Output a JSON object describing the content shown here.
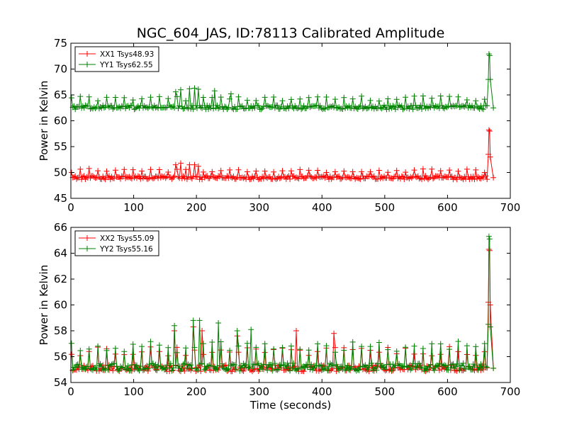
{
  "figure": {
    "title": "NGC_604_JAS, ID:78113 Calibrated Amplitude"
  },
  "chart_data": [
    {
      "type": "line",
      "title": "NGC_604_JAS, ID:78113 Calibrated Amplitude",
      "xlabel": "",
      "ylabel": "Power in Kelvin",
      "xlim": [
        0,
        700
      ],
      "ylim": [
        45,
        75
      ],
      "xticks": [
        "0",
        "100",
        "200",
        "300",
        "400",
        "500",
        "600",
        "700"
      ],
      "yticks": [
        "45",
        "50",
        "55",
        "60",
        "65",
        "70",
        "75"
      ],
      "grid": false,
      "legend": "top-left",
      "marker": "plus",
      "x_step": 2,
      "x_start": 1,
      "series": [
        {
          "name": "XX1 Tsys48.93",
          "color": "#ff0000",
          "base": 49.0,
          "noise": 0.35,
          "periodic_peak": 50.8,
          "tall_peaks": [
            [
              168,
              51.5
            ],
            [
              175,
              51.8
            ],
            [
              190,
              51.5
            ],
            [
              197,
              51.5
            ],
            [
              203,
              51.2
            ]
          ],
          "spike": [
            [
              665,
              53.5
            ],
            [
              666,
              58.2
            ],
            [
              667,
              58.0
            ],
            [
              668,
              53.0
            ]
          ],
          "end": [
            [
              673,
              49.0
            ]
          ]
        },
        {
          "name": "YY1 Tsys62.55",
          "color": "#008000",
          "base": 62.6,
          "noise": 0.4,
          "periodic_peak": 64.8,
          "tall_peaks": [
            [
              168,
              65.6
            ],
            [
              175,
              66.0
            ],
            [
              190,
              66.2
            ],
            [
              197,
              66.3
            ],
            [
              203,
              66.1
            ],
            [
              230,
              65.8
            ],
            [
              255,
              65.2
            ]
          ],
          "spike": [
            [
              665,
              68.0
            ],
            [
              666,
              72.9
            ],
            [
              667,
              72.6
            ],
            [
              668,
              68.0
            ]
          ],
          "end": [
            [
              673,
              62.5
            ]
          ]
        }
      ]
    },
    {
      "type": "line",
      "title": "",
      "xlabel": "Time (seconds)",
      "ylabel": "Power in Kelvin",
      "xlim": [
        0,
        700
      ],
      "ylim": [
        54,
        66
      ],
      "xticks": [
        "0",
        "100",
        "200",
        "300",
        "400",
        "500",
        "600",
        "700"
      ],
      "yticks": [
        "54",
        "56",
        "58",
        "60",
        "62",
        "64",
        "66"
      ],
      "grid": false,
      "legend": "top-left",
      "marker": "plus",
      "x_step": 2,
      "x_start": 1,
      "series": [
        {
          "name": "XX2 Tsys55.09",
          "color": "#ff0000",
          "base": 55.1,
          "noise": 0.25,
          "periodic_peak": 56.8,
          "tall_peaks": [
            [
              165,
              58.0
            ],
            [
              195,
              58.3
            ],
            [
              210,
              58.0
            ],
            [
              265,
              57.6
            ],
            [
              360,
              58.0
            ],
            [
              420,
              57.8
            ]
          ],
          "spike": [
            [
              665,
              60.2
            ],
            [
              666,
              64.3
            ],
            [
              667,
              64.2
            ],
            [
              668,
              60.0
            ]
          ],
          "end": [
            [
              673,
              55.1
            ]
          ]
        },
        {
          "name": "YY2 Tsys55.16",
          "color": "#008000",
          "base": 55.2,
          "noise": 0.3,
          "periodic_peak": 57.2,
          "tall_peaks": [
            [
              165,
              58.4
            ],
            [
              195,
              58.8
            ],
            [
              205,
              58.8
            ],
            [
              235,
              58.6
            ],
            [
              265,
              58.0
            ],
            [
              287,
              58.1
            ]
          ],
          "spike": [
            [
              665,
              58.5
            ],
            [
              666,
              65.3
            ],
            [
              667,
              65.1
            ],
            [
              668,
              58.3
            ]
          ],
          "end": [
            [
              673,
              55.1
            ]
          ]
        }
      ]
    }
  ]
}
